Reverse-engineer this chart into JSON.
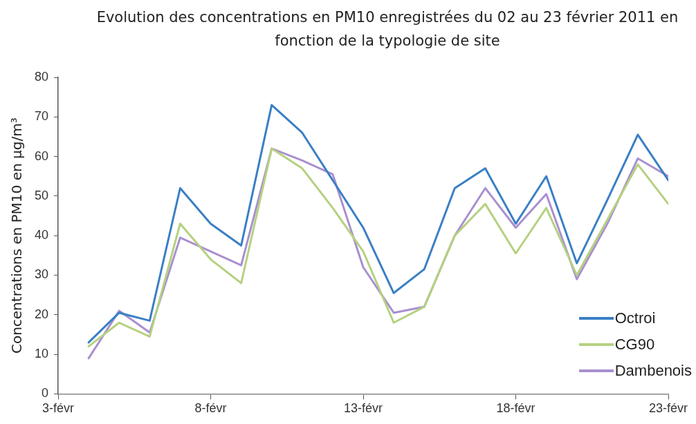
{
  "chart_data": {
    "type": "line",
    "title": "Evolution des concentrations en PM10 enregistrées du 02 au 23 février 2011 en fonction de la typologie de site",
    "ylabel": "Concentrations en PM10 en µg/m³",
    "x": [
      "--02-04",
      "--02-05",
      "--02-06",
      "--02-07",
      "--02-08",
      "--02-09",
      "--02-10",
      "--02-11",
      "--02-12",
      "--02-13",
      "--02-14",
      "--02-15",
      "--02-16",
      "--02-17",
      "--02-18",
      "--02-19",
      "--02-20",
      "--02-21",
      "--02-22",
      "--02-23"
    ],
    "series": [
      {
        "name": "Octroi",
        "color": "#3a7fc4",
        "values": [
          13,
          20.5,
          18.5,
          52,
          43,
          37.5,
          73,
          66,
          54,
          42,
          25.5,
          31.5,
          52,
          57,
          43,
          55,
          33,
          49,
          65.5,
          54
        ]
      },
      {
        "name": "CG90",
        "color": "#b5d17f",
        "values": [
          12,
          18,
          14.5,
          43,
          34,
          28,
          62,
          57,
          47,
          36,
          18,
          22,
          40,
          48,
          35.5,
          47,
          30,
          44,
          58,
          48
        ]
      },
      {
        "name": "Dambenois",
        "color": "#a98fd0",
        "values": [
          9,
          21,
          15.5,
          39.5,
          36,
          32.5,
          62,
          59,
          55.5,
          32,
          20.5,
          22,
          40,
          52,
          42,
          50.5,
          29,
          43,
          59.5,
          55
        ]
      }
    ],
    "xlim": [
      "--02-03",
      "--02-23"
    ],
    "xticks": [
      {
        "value": "--02-03",
        "label": "3-févr"
      },
      {
        "value": "--02-08",
        "label": "8-févr"
      },
      {
        "value": "--02-13",
        "label": "13-févr"
      },
      {
        "value": "--02-18",
        "label": "18-févr"
      },
      {
        "value": "--02-23",
        "label": "23-févr"
      }
    ],
    "ylim": [
      0,
      80
    ],
    "yticks": [
      0,
      10,
      20,
      30,
      40,
      50,
      60,
      70,
      80
    ],
    "grid": false,
    "legend": "bottom right",
    "marker": "none",
    "line_style": "solid"
  }
}
